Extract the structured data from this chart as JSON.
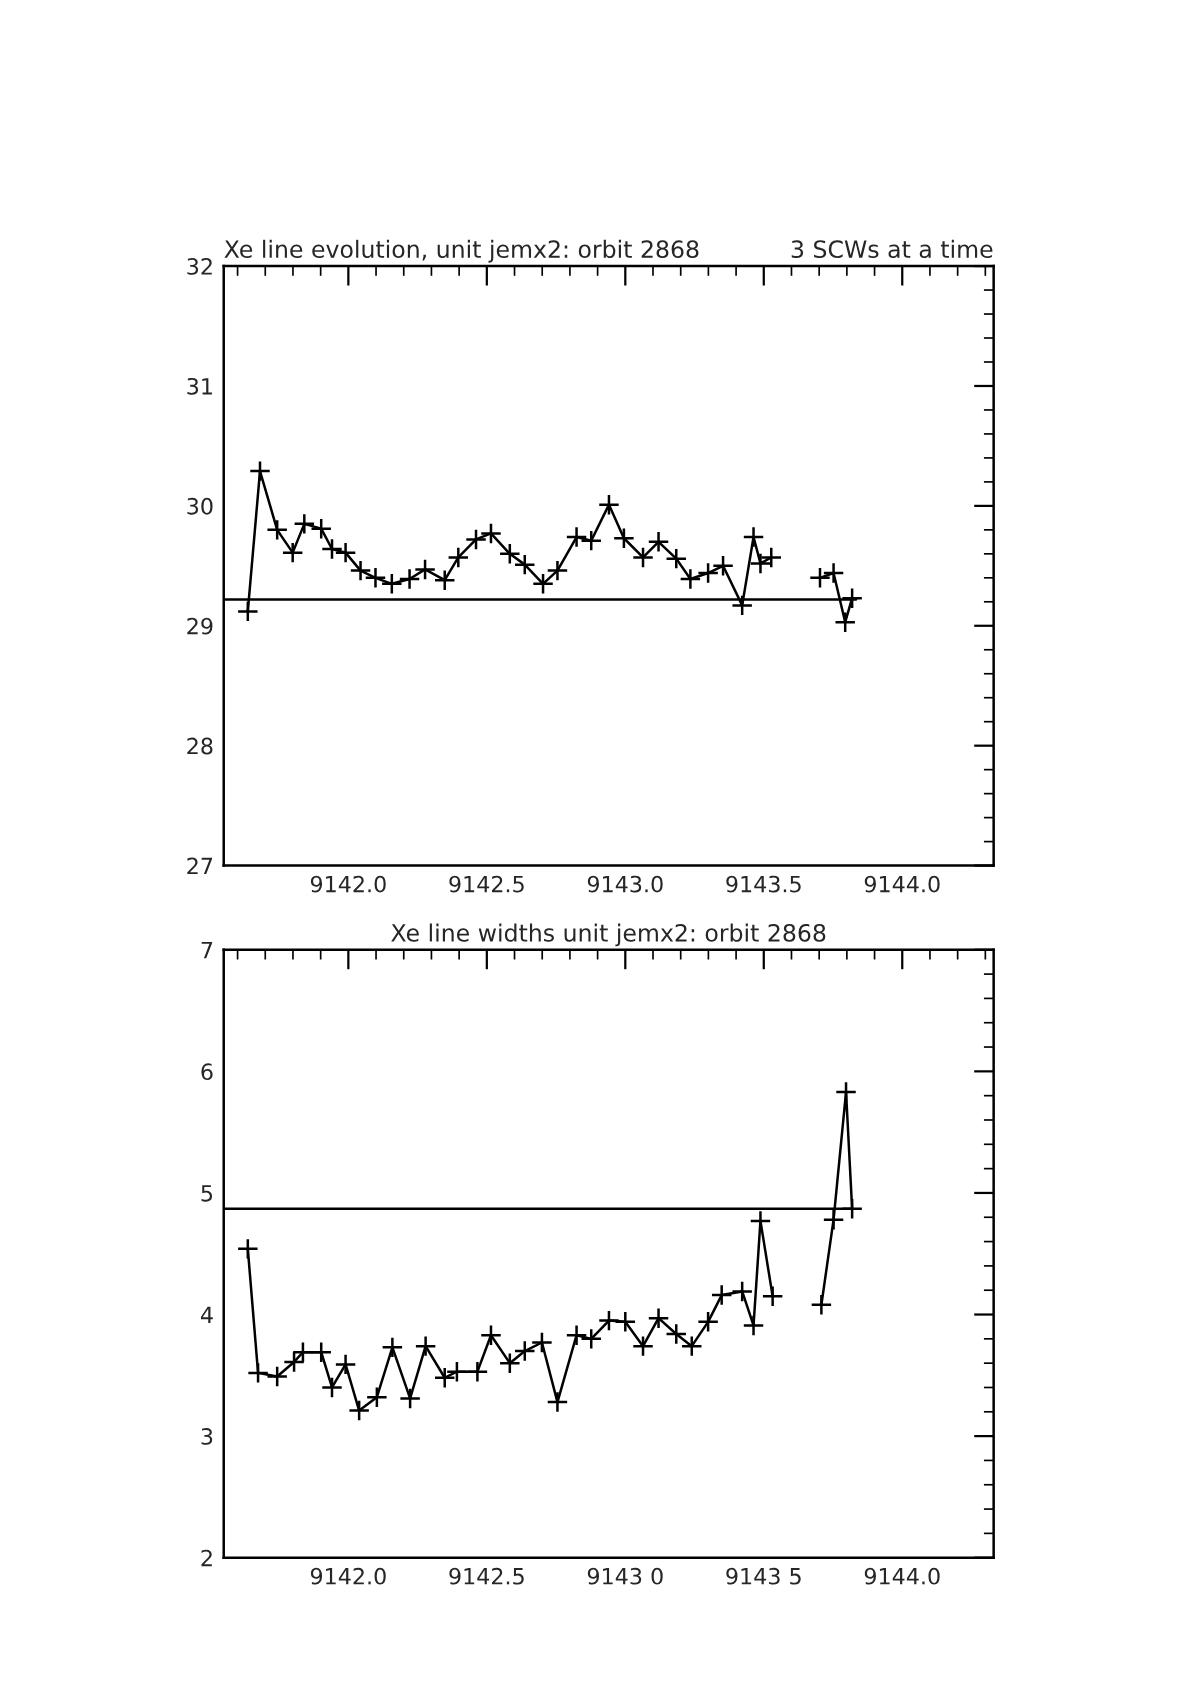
{
  "chart_data": [
    {
      "type": "line",
      "title": "Xe line evolution, unit jemx2: orbit 2868",
      "subtitle": "3 SCWs at a time",
      "marker": "cross",
      "grid": false,
      "legend": false,
      "xlim": [
        9141.55,
        9144.33
      ],
      "ylim": [
        27,
        32
      ],
      "xticks": [
        {
          "value": 9141.6,
          "label": null
        },
        {
          "value": 9141.7,
          "label": null
        },
        {
          "value": 9141.8,
          "label": null
        },
        {
          "value": 9141.9,
          "label": null
        },
        {
          "value": 9142.0,
          "label": "9142.0"
        },
        {
          "value": 9142.1,
          "label": null
        },
        {
          "value": 9142.2,
          "label": null
        },
        {
          "value": 9142.3,
          "label": null
        },
        {
          "value": 9142.4,
          "label": null
        },
        {
          "value": 9142.5,
          "label": "9142.5"
        },
        {
          "value": 9142.6,
          "label": null
        },
        {
          "value": 9142.7,
          "label": null
        },
        {
          "value": 9142.8,
          "label": null
        },
        {
          "value": 9142.9,
          "label": null
        },
        {
          "value": 9143.0,
          "label": "9143.0"
        },
        {
          "value": 9143.1,
          "label": null
        },
        {
          "value": 9143.2,
          "label": null
        },
        {
          "value": 9143.3,
          "label": null
        },
        {
          "value": 9143.4,
          "label": null
        },
        {
          "value": 9143.5,
          "label": "9143.5"
        },
        {
          "value": 9143.6,
          "label": null
        },
        {
          "value": 9143.7,
          "label": null
        },
        {
          "value": 9143.8,
          "label": null
        },
        {
          "value": 9143.9,
          "label": null
        },
        {
          "value": 9144.0,
          "label": "9144.0"
        },
        {
          "value": 9144.1,
          "label": null
        },
        {
          "value": 9144.2,
          "label": null
        },
        {
          "value": 9144.3,
          "label": null
        }
      ],
      "yticks": [
        27,
        {
          "value": 27.2,
          "label": null
        },
        {
          "value": 27.4,
          "label": null
        },
        {
          "value": 27.6,
          "label": null
        },
        {
          "value": 27.8,
          "label": null
        },
        28,
        {
          "value": 28.2,
          "label": null
        },
        {
          "value": 28.4,
          "label": null
        },
        {
          "value": 28.6,
          "label": null
        },
        {
          "value": 28.8,
          "label": null
        },
        29,
        {
          "value": 29.2,
          "label": null
        },
        {
          "value": 29.4,
          "label": null
        },
        {
          "value": 29.6,
          "label": null
        },
        {
          "value": 29.8,
          "label": null
        },
        30,
        {
          "value": 30.2,
          "label": null
        },
        {
          "value": 30.4,
          "label": null
        },
        {
          "value": 30.6,
          "label": null
        },
        {
          "value": 30.8,
          "label": null
        },
        31,
        {
          "value": 31.2,
          "label": null
        },
        {
          "value": 31.4,
          "label": null
        },
        {
          "value": 31.6,
          "label": null
        },
        {
          "value": 31.8,
          "label": null
        },
        32
      ],
      "series": [
        {
          "color": "#000000",
          "x": [
            9141.637,
            9141.681,
            9141.743,
            9141.799,
            9141.841,
            9141.902,
            9141.941,
            9141.99,
            9142.044,
            9142.098,
            9142.157,
            9142.221,
            9142.277,
            9142.348,
            9142.397,
            9142.461,
            9142.515,
            9142.583,
            9142.637,
            9142.703,
            9142.755,
            9142.824,
            9142.877,
            9142.941,
            9142.995,
            9143.064,
            9143.12,
            9143.184,
            9143.235,
            9143.299,
            9143.353,
            9143.422,
            9143.463,
            9143.488,
            9143.527,
            9143.535,
            9143.703,
            9143.752,
            9143.794,
            9143.819
          ],
          "values": [
            29.12,
            30.29,
            29.8,
            29.61,
            29.85,
            29.81,
            29.64,
            29.61,
            29.46,
            29.4,
            29.35,
            29.39,
            29.47,
            29.38,
            29.57,
            29.72,
            29.77,
            29.6,
            29.51,
            29.35,
            29.46,
            29.74,
            29.71,
            30.01,
            29.73,
            29.57,
            29.7,
            29.56,
            29.39,
            29.44,
            29.5,
            29.17,
            29.74,
            29.52,
            29.57,
            null,
            29.4,
            29.44,
            29.03,
            29.23
          ]
        },
        {
          "color": "#000000",
          "marker": "none",
          "x": [
            9141.55,
            9143.833
          ],
          "values": [
            29.22,
            29.22
          ]
        }
      ]
    },
    {
      "type": "line",
      "title": "Xe line widths unit jemx2: orbit 2868",
      "marker": "cross",
      "grid": false,
      "legend": false,
      "xlim": [
        9141.55,
        9144.33
      ],
      "ylim": [
        2,
        7
      ],
      "xticks": [
        {
          "value": 9141.6,
          "label": null
        },
        {
          "value": 9141.7,
          "label": null
        },
        {
          "value": 9141.8,
          "label": null
        },
        {
          "value": 9141.9,
          "label": null
        },
        {
          "value": 9142.0,
          "label": "9142.0"
        },
        {
          "value": 9142.1,
          "label": null
        },
        {
          "value": 9142.2,
          "label": null
        },
        {
          "value": 9142.3,
          "label": null
        },
        {
          "value": 9142.4,
          "label": null
        },
        {
          "value": 9142.5,
          "label": "9142.5"
        },
        {
          "value": 9142.6,
          "label": null
        },
        {
          "value": 9142.7,
          "label": null
        },
        {
          "value": 9142.8,
          "label": null
        },
        {
          "value": 9142.9,
          "label": null
        },
        {
          "value": 9143.0,
          "label": "9143 0"
        },
        {
          "value": 9143.1,
          "label": null
        },
        {
          "value": 9143.2,
          "label": null
        },
        {
          "value": 9143.3,
          "label": null
        },
        {
          "value": 9143.4,
          "label": null
        },
        {
          "value": 9143.5,
          "label": "9143 5"
        },
        {
          "value": 9143.6,
          "label": null
        },
        {
          "value": 9143.7,
          "label": null
        },
        {
          "value": 9143.8,
          "label": null
        },
        {
          "value": 9143.9,
          "label": null
        },
        {
          "value": 9144.0,
          "label": "9144.0"
        },
        {
          "value": 9144.1,
          "label": null
        },
        {
          "value": 9144.2,
          "label": null
        },
        {
          "value": 9144.3,
          "label": null
        }
      ],
      "yticks": [
        2,
        {
          "value": 2.2,
          "label": null
        },
        {
          "value": 2.4,
          "label": null
        },
        {
          "value": 2.6,
          "label": null
        },
        {
          "value": 2.8,
          "label": null
        },
        3,
        {
          "value": 3.2,
          "label": null
        },
        {
          "value": 3.4,
          "label": null
        },
        {
          "value": 3.6,
          "label": null
        },
        {
          "value": 3.8,
          "label": null
        },
        4,
        {
          "value": 4.2,
          "label": null
        },
        {
          "value": 4.4,
          "label": null
        },
        {
          "value": 4.6,
          "label": null
        },
        {
          "value": 4.8,
          "label": null
        },
        5,
        {
          "value": 5.2,
          "label": null
        },
        {
          "value": 5.4,
          "label": null
        },
        {
          "value": 5.6,
          "label": null
        },
        {
          "value": 5.8,
          "label": null
        },
        6,
        {
          "value": 6.2,
          "label": null
        },
        {
          "value": 6.4,
          "label": null
        },
        {
          "value": 6.6,
          "label": null
        },
        {
          "value": 6.8,
          "label": null
        },
        7
      ],
      "series": [
        {
          "color": "#000000",
          "x": [
            9141.637,
            9141.674,
            9141.743,
            9141.804,
            9141.836,
            9141.902,
            9141.941,
            9141.99,
            9142.039,
            9142.103,
            9142.159,
            9142.223,
            9142.279,
            9142.348,
            9142.392,
            9142.466,
            9142.515,
            9142.583,
            9142.637,
            9142.699,
            9142.755,
            9142.824,
            9142.877,
            9142.941,
            9143.0,
            9143.064,
            9143.12,
            9143.184,
            9143.24,
            9143.299,
            9143.348,
            9143.422,
            9143.463,
            9143.488,
            9143.532,
            9143.537,
            9143.708,
            9143.752,
            9143.797,
            9143.819
          ],
          "values": [
            4.54,
            3.52,
            3.49,
            3.61,
            3.69,
            3.69,
            3.4,
            3.59,
            3.21,
            3.32,
            3.73,
            3.31,
            3.74,
            3.48,
            3.53,
            3.53,
            3.83,
            3.6,
            3.7,
            3.77,
            3.28,
            3.83,
            3.8,
            3.95,
            3.94,
            3.74,
            3.97,
            3.84,
            3.74,
            3.94,
            4.16,
            4.19,
            3.91,
            4.77,
            4.15,
            null,
            4.08,
            4.78,
            5.83,
            4.87
          ]
        },
        {
          "color": "#000000",
          "marker": "none",
          "x": [
            9141.55,
            9143.819
          ],
          "values": [
            4.87,
            4.87
          ]
        }
      ]
    }
  ]
}
